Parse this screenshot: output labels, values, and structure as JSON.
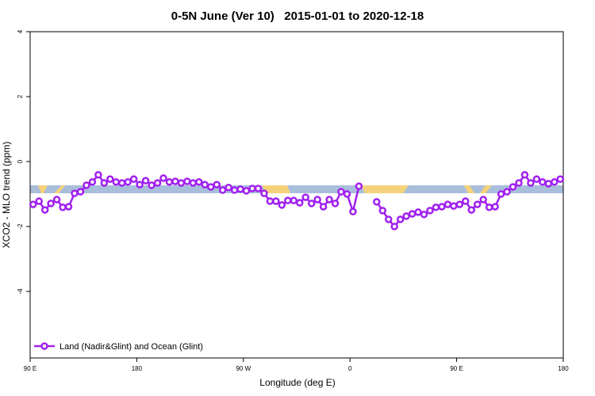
{
  "chart_data": {
    "type": "line",
    "title": "0-5N June (Ver 10)   2015-01-01 to 2020-12-18",
    "x_label": "Longitude (deg E)",
    "y_label": "XCO2 - MLO trend (ppm)",
    "xlim": [
      90,
      540
    ],
    "xticks": [
      {
        "value": 90,
        "label": "90 E"
      },
      180,
      {
        "value": 270,
        "label": "90 W"
      },
      {
        "value": 360,
        "label": "0"
      },
      {
        "value": 450,
        "label": "90 E"
      },
      {
        "value": 540,
        "label": "180"
      }
    ],
    "ylim": [
      -6.05,
      4
    ],
    "yticks": [
      4,
      2,
      0,
      -2,
      -4
    ],
    "legend": "bottom-left",
    "x": [
      92.5,
      97.5,
      102.5,
      107.5,
      112.5,
      117.5,
      122.5,
      127.5,
      132.5,
      137.5,
      142.5,
      147.5,
      152.5,
      157.5,
      162.5,
      167.5,
      172.5,
      177.5,
      182.5,
      187.5,
      192.5,
      197.5,
      202.5,
      207.5,
      212.5,
      217.5,
      222.5,
      227.5,
      232.5,
      237.5,
      242.5,
      247.5,
      252.5,
      257.5,
      262.5,
      267.5,
      272.5,
      277.5,
      282.5,
      287.5,
      292.5,
      297.5,
      302.5,
      307.5,
      312.5,
      317.5,
      322.5,
      327.5,
      332.5,
      337.5,
      342.5,
      347.5,
      352.5,
      357.5,
      362.5,
      367.5,
      372.5,
      377.5,
      382.5,
      387.5,
      392.5,
      397.5,
      402.5,
      407.5,
      412.5,
      417.5,
      422.5,
      427.5,
      432.5,
      437.5,
      442.5,
      447.5,
      452.5,
      457.5,
      462.5,
      467.5,
      472.5,
      477.5,
      482.5,
      487.5,
      492.5,
      497.5,
      502.5,
      507.5,
      512.5,
      517.5,
      522.5,
      527.5,
      532.5,
      537.5
    ],
    "series": [
      {
        "name": "Land (Nadir&Glint) and Ocean (Glint)",
        "color": "#a020f0",
        "values": [
          -1.32,
          -1.22,
          -1.49,
          -1.29,
          -1.17,
          -1.41,
          -1.39,
          -0.98,
          -0.93,
          -0.73,
          -0.63,
          -0.41,
          -0.66,
          -0.54,
          -0.63,
          -0.66,
          -0.63,
          -0.54,
          -0.71,
          -0.59,
          -0.73,
          -0.66,
          -0.51,
          -0.63,
          -0.61,
          -0.66,
          -0.61,
          -0.66,
          -0.63,
          -0.71,
          -0.78,
          -0.71,
          -0.88,
          -0.8,
          -0.88,
          -0.85,
          -0.9,
          -0.83,
          -0.83,
          -0.98,
          -1.22,
          -1.22,
          -1.34,
          -1.2,
          -1.2,
          -1.27,
          -1.1,
          -1.29,
          -1.17,
          -1.39,
          -1.17,
          -1.29,
          -0.93,
          -1.0,
          -1.54,
          -0.76,
          null,
          null,
          -1.24,
          -1.51,
          -1.78,
          -2.0,
          -1.78,
          -1.68,
          -1.61,
          -1.56,
          -1.63,
          -1.51,
          -1.41,
          -1.39,
          -1.32,
          -1.37,
          -1.32,
          -1.22,
          -1.49,
          -1.32,
          -1.17,
          -1.41,
          -1.39,
          -1.0,
          -0.93,
          -0.78,
          -0.66,
          -0.41,
          -0.66,
          -0.54,
          -0.63,
          -0.68,
          -0.63,
          -0.54
        ]
      }
    ]
  }
}
